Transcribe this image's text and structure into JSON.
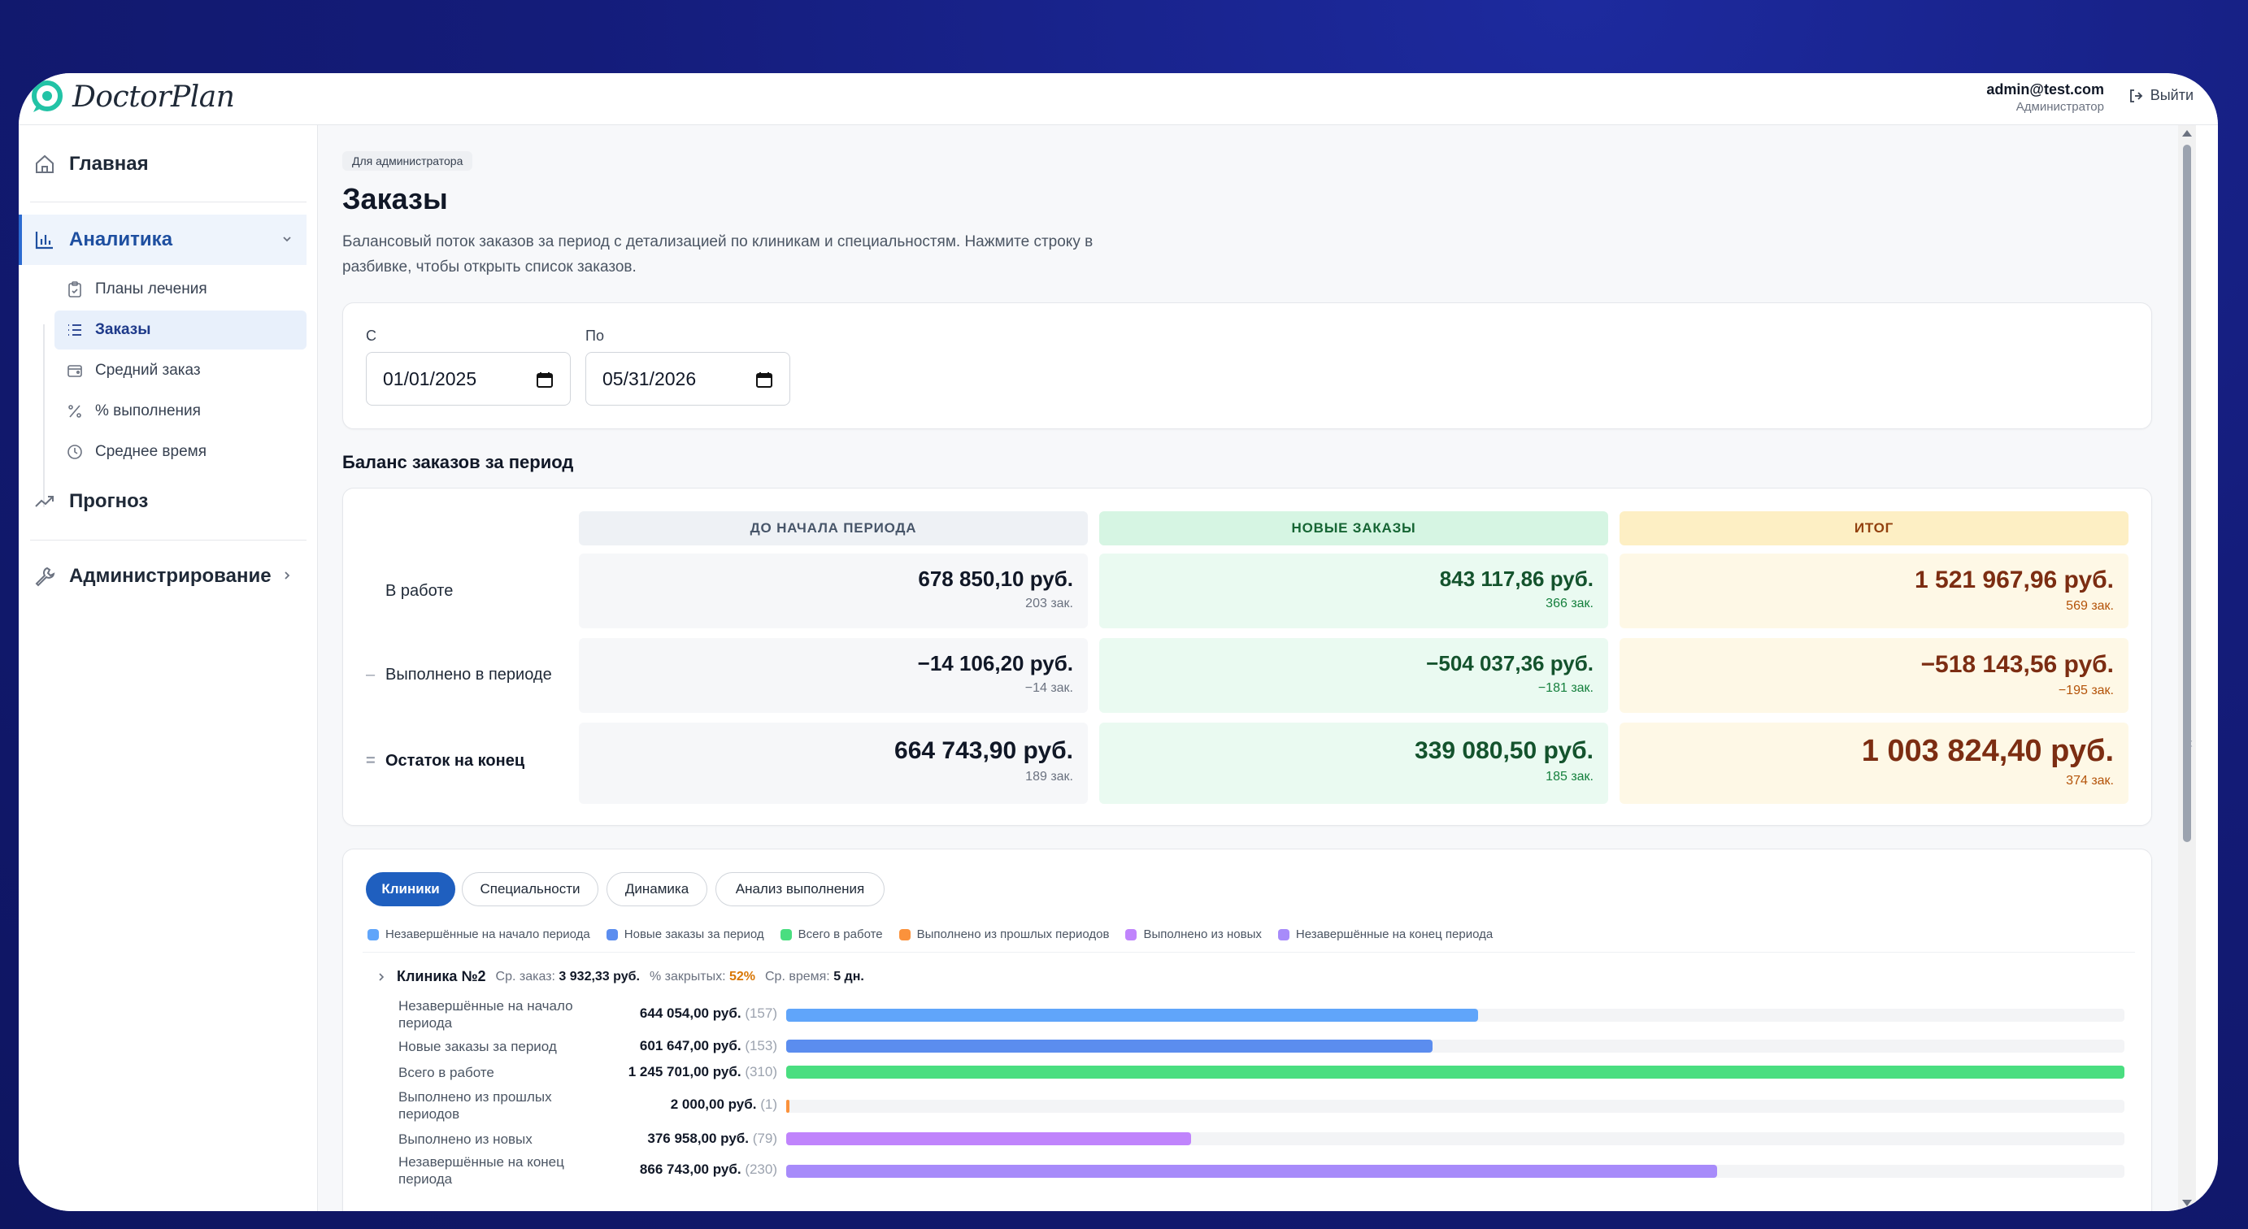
{
  "app": {
    "brand": "DoctorPlan",
    "user_email": "admin@test.com",
    "user_role": "Администратор",
    "logout_label": "Выйти"
  },
  "sidebar": {
    "main": [
      {
        "label": "Главная",
        "icon": "home-icon"
      },
      {
        "label": "Аналитика",
        "icon": "bar-chart-icon",
        "active": true
      },
      {
        "label": "Прогноз",
        "icon": "trend-icon"
      },
      {
        "label": "Администрирование",
        "icon": "wrench-icon"
      }
    ],
    "analytics_items": [
      {
        "label": "Планы лечения",
        "icon": "clipboard-icon"
      },
      {
        "label": "Заказы",
        "icon": "list-icon",
        "active": true
      },
      {
        "label": "Средний заказ",
        "icon": "wallet-icon"
      },
      {
        "label": "% выполнения",
        "icon": "percent-icon"
      },
      {
        "label": "Среднее время",
        "icon": "clock-icon"
      }
    ]
  },
  "page": {
    "badge": "Для администратора",
    "title": "Заказы",
    "description": "Балансовый поток заказов за период с детализацией по клиникам и специальностям. Нажмите строку в разбивке, чтобы открыть список заказов."
  },
  "filters": {
    "from_label": "С",
    "from_value": "01/01/2025",
    "to_label": "По",
    "to_value": "05/31/2026"
  },
  "balance": {
    "title": "Баланс заказов за период",
    "columns": [
      "ДО НАЧАЛА ПЕРИОДА",
      "НОВЫЕ ЗАКАЗЫ",
      "ИТОГ"
    ],
    "rows": [
      {
        "op": "",
        "label": "В работе",
        "cells": [
          {
            "amount": "678 850,10 руб.",
            "count": "203 зак."
          },
          {
            "amount": "843 117,86 руб.",
            "count": "366 зак."
          },
          {
            "amount": "1 521 967,96 руб.",
            "count": "569 зак."
          }
        ]
      },
      {
        "op": "–",
        "label": "Выполнено в периоде",
        "cells": [
          {
            "amount": "−14 106,20 руб.",
            "count": "−14 зак."
          },
          {
            "amount": "−504 037,36 руб.",
            "count": "−181 зак."
          },
          {
            "amount": "−518 143,56 руб.",
            "count": "−195 зак."
          }
        ]
      },
      {
        "op": "=",
        "label": "Остаток на конец",
        "cells": [
          {
            "amount": "664 743,90 руб.",
            "count": "189 зак."
          },
          {
            "amount": "339 080,50 руб.",
            "count": "185 зак."
          },
          {
            "amount": "1 003 824,40 руб.",
            "count": "374 зак."
          }
        ]
      }
    ]
  },
  "tabs": [
    "Клиники",
    "Специальности",
    "Динамика",
    "Анализ выполнения"
  ],
  "legend": [
    {
      "label": "Незавершённые на начало периода",
      "color": "#60a5fa"
    },
    {
      "label": "Новые заказы за период",
      "color": "#5b8def"
    },
    {
      "label": "Всего в работе",
      "color": "#4ade80"
    },
    {
      "label": "Выполнено из прошлых периодов",
      "color": "#fb923c"
    },
    {
      "label": "Выполнено из новых",
      "color": "#c084fc"
    },
    {
      "label": "Незавершённые на конец периода",
      "color": "#a78bfa"
    }
  ],
  "clinic": {
    "name": "Клиника №2",
    "avg_label": "Ср. заказ:",
    "avg_value": "3 932,33 руб.",
    "pct_label": "% закрытых:",
    "pct_value": "52%",
    "time_label": "Ср. время:",
    "time_value": "5 дн.",
    "bars": [
      {
        "label": "Незавершённые на начало периода",
        "value": "644 054,00 руб.",
        "count": "(157)",
        "amount": 644054,
        "color": "#60a5fa"
      },
      {
        "label": "Новые заказы за период",
        "value": "601 647,00 руб.",
        "count": "(153)",
        "amount": 601647,
        "color": "#5b8def"
      },
      {
        "label": "Всего в работе",
        "value": "1 245 701,00 руб.",
        "count": "(310)",
        "amount": 1245701,
        "color": "#4ade80"
      },
      {
        "label": "Выполнено из прошлых периодов",
        "value": "2 000,00 руб.",
        "count": "(1)",
        "amount": 2000,
        "color": "#fb923c"
      },
      {
        "label": "Выполнено из новых",
        "value": "376 958,00 руб.",
        "count": "(79)",
        "amount": 376958,
        "color": "#c084fc"
      },
      {
        "label": "Незавершённые на конец периода",
        "value": "866 743,00 руб.",
        "count": "(230)",
        "amount": 866743,
        "color": "#a78bfa"
      }
    ]
  }
}
